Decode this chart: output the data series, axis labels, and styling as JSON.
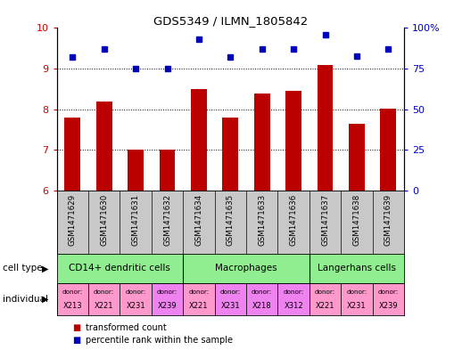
{
  "title": "GDS5349 / ILMN_1805842",
  "samples": [
    "GSM1471629",
    "GSM1471630",
    "GSM1471631",
    "GSM1471632",
    "GSM1471634",
    "GSM1471635",
    "GSM1471633",
    "GSM1471636",
    "GSM1471637",
    "GSM1471638",
    "GSM1471639"
  ],
  "red_values": [
    7.8,
    8.2,
    7.0,
    7.0,
    8.5,
    7.8,
    8.38,
    8.45,
    9.1,
    7.65,
    8.02
  ],
  "blue_values": [
    82,
    87,
    75,
    75,
    93,
    82,
    87,
    87,
    96,
    83,
    87
  ],
  "ylim_left": [
    6,
    10
  ],
  "ylim_right": [
    0,
    100
  ],
  "yticks_left": [
    6,
    7,
    8,
    9,
    10
  ],
  "yticks_right": [
    0,
    25,
    50,
    75,
    100
  ],
  "yticklabels_right": [
    "0",
    "25",
    "50",
    "75",
    "100%"
  ],
  "bar_color": "#BB0000",
  "dot_color": "#0000BB",
  "label_color_left": "#CC0000",
  "label_color_right": "#0000CC",
  "sample_bg_color": "#C8C8C8",
  "cell_type_bg_color": "#90EE90",
  "cell_type_groups": [
    {
      "label": "CD14+ dendritic cells",
      "cols": [
        0,
        1,
        2,
        3
      ]
    },
    {
      "label": "Macrophages",
      "cols": [
        4,
        5,
        6,
        7
      ]
    },
    {
      "label": "Langerhans cells",
      "cols": [
        8,
        9,
        10
      ]
    }
  ],
  "individual_donors": [
    {
      "donor": "X213",
      "col": 0,
      "color": "#FF99CC"
    },
    {
      "donor": "X221",
      "col": 1,
      "color": "#FF99CC"
    },
    {
      "donor": "X231",
      "col": 2,
      "color": "#FF99CC"
    },
    {
      "donor": "X239",
      "col": 3,
      "color": "#EE82EE"
    },
    {
      "donor": "X221",
      "col": 4,
      "color": "#FF99CC"
    },
    {
      "donor": "X231",
      "col": 5,
      "color": "#EE82EE"
    },
    {
      "donor": "X218",
      "col": 6,
      "color": "#EE82EE"
    },
    {
      "donor": "X312",
      "col": 7,
      "color": "#EE82EE"
    },
    {
      "donor": "X221",
      "col": 8,
      "color": "#FF99CC"
    },
    {
      "donor": "X231",
      "col": 9,
      "color": "#FF99CC"
    },
    {
      "donor": "X239",
      "col": 10,
      "color": "#FF99CC"
    }
  ]
}
